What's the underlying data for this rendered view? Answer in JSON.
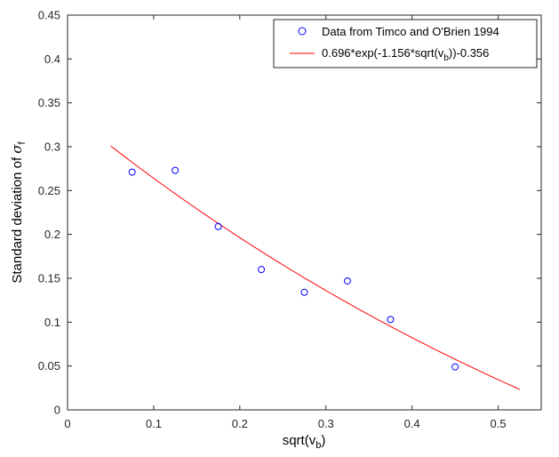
{
  "chart_data": {
    "type": "scatter",
    "xlabel": "sqrt(v",
    "xlabel_sub": "b",
    "xlabel_end": ")",
    "ylabel": "Standard deviation of ",
    "ylabel_sym": "σ",
    "ylabel_sub": "f",
    "xlim": [
      0,
      0.55
    ],
    "ylim": [
      0,
      0.45
    ],
    "xticks": [
      0,
      0.1,
      0.2,
      0.3,
      0.4,
      0.5
    ],
    "xtick_labels": [
      "0",
      "0.1",
      "0.2",
      "0.3",
      "0.4",
      "0.5"
    ],
    "yticks": [
      0,
      0.05,
      0.1,
      0.15,
      0.2,
      0.25,
      0.3,
      0.35,
      0.4,
      0.45
    ],
    "ytick_labels": [
      "0",
      "0.05",
      "0.1",
      "0.15",
      "0.2",
      "0.25",
      "0.3",
      "0.35",
      "0.4",
      "0.45"
    ],
    "grid": false,
    "legend_position": "top-right",
    "series": [
      {
        "name": "Data from Timco and O'Brien 1994",
        "kind": "markers",
        "marker": "circle",
        "color": "#0000ff",
        "x": [
          0.075,
          0.125,
          0.175,
          0.225,
          0.275,
          0.325,
          0.375,
          0.45
        ],
        "y": [
          0.271,
          0.273,
          0.209,
          0.16,
          0.134,
          0.147,
          0.103,
          0.049
        ]
      },
      {
        "name_pre": "0.696*exp(-1.156*sqrt(v",
        "name_sub": "b",
        "name_post": "))-0.356",
        "kind": "line",
        "color": "#ff0000",
        "x_range": [
          0.05,
          0.525
        ],
        "a": 0.696,
        "b": -1.156,
        "c": -0.356
      }
    ]
  }
}
